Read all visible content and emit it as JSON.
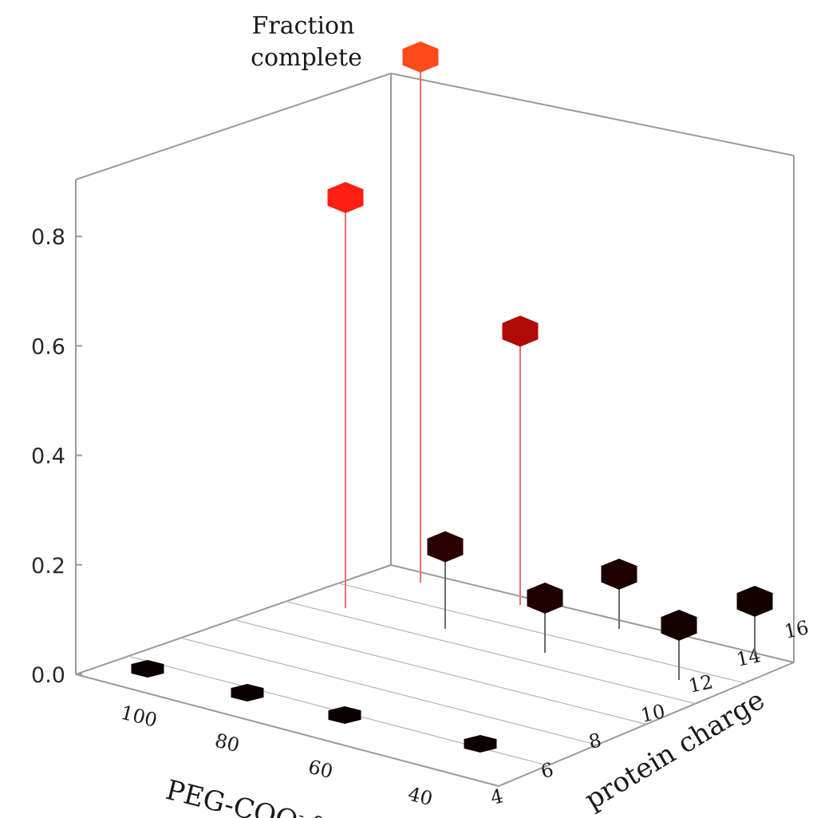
{
  "chart_data": {
    "type": "scatter",
    "subtype": "3d-stem",
    "title": "",
    "zlabel_lines": [
      "Fraction",
      "complete"
    ],
    "xlabel": "PEG-COO",
    "xlabel_superscript": "-",
    "xlabel_suffix": " %",
    "ylabel": "protein charge",
    "x_ticks": [
      "100",
      "80",
      "60",
      "40"
    ],
    "y_ticks": [
      "4",
      "6",
      "8",
      "10",
      "12",
      "14",
      "16"
    ],
    "z_ticks": [
      "0.0",
      "0.2",
      "0.4",
      "0.6",
      "0.8"
    ],
    "xlim": [
      30,
      110
    ],
    "ylim": [
      3,
      16
    ],
    "zlim": [
      0,
      1.05
    ],
    "grid": true,
    "legend": "none",
    "points": [
      {
        "x": 100,
        "y": 4,
        "z": 0.0,
        "color": "#0a0000"
      },
      {
        "x": 80,
        "y": 4,
        "z": 0.0,
        "color": "#0a0000"
      },
      {
        "x": 60,
        "y": 4,
        "z": 0.0,
        "color": "#0a0000"
      },
      {
        "x": 40,
        "y": 4,
        "z": 0.0,
        "color": "#0a0000"
      },
      {
        "x": 100,
        "y": 14,
        "z": 0.75,
        "color": "#ff1e12"
      },
      {
        "x": 100,
        "y": 16,
        "z": 0.96,
        "color": "#ff4a1a"
      },
      {
        "x": 80,
        "y": 16,
        "z": 0.5,
        "color": "#b00a06"
      },
      {
        "x": 100,
        "y": 10,
        "z": 0.15,
        "color": "#2a0000"
      },
      {
        "x": 80,
        "y": 12,
        "z": 0.1,
        "color": "#1e0000"
      },
      {
        "x": 60,
        "y": 14,
        "z": 0.1,
        "color": "#1e0000"
      },
      {
        "x": 60,
        "y": 12,
        "z": 0.1,
        "color": "#150000"
      },
      {
        "x": 40,
        "y": 14,
        "z": 0.1,
        "color": "#150000"
      }
    ]
  }
}
